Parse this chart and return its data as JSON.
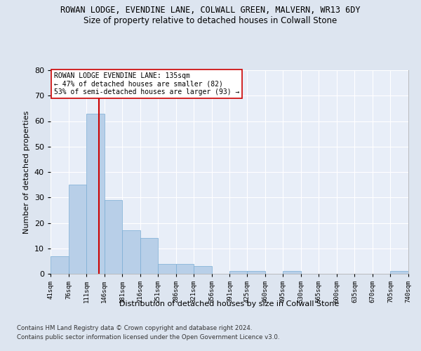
{
  "title": "ROWAN LODGE, EVENDINE LANE, COLWALL GREEN, MALVERN, WR13 6DY",
  "subtitle": "Size of property relative to detached houses in Colwall Stone",
  "xlabel": "Distribution of detached houses by size in Colwall Stone",
  "ylabel": "Number of detached properties",
  "bar_color": "#b8cfe8",
  "bar_edge_color": "#7aadd4",
  "bins": [
    41,
    76,
    111,
    146,
    181,
    216,
    251,
    286,
    321,
    356,
    391,
    425,
    460,
    495,
    530,
    565,
    600,
    635,
    670,
    705,
    740
  ],
  "counts": [
    7,
    35,
    63,
    29,
    17,
    14,
    4,
    4,
    3,
    0,
    1,
    1,
    0,
    1,
    0,
    0,
    0,
    0,
    0,
    1
  ],
  "vline_x": 135,
  "vline_color": "#cc0000",
  "ylim": [
    0,
    80
  ],
  "yticks": [
    0,
    10,
    20,
    30,
    40,
    50,
    60,
    70,
    80
  ],
  "annotation_text": "ROWAN LODGE EVENDINE LANE: 135sqm\n← 47% of detached houses are smaller (82)\n53% of semi-detached houses are larger (93) →",
  "annotation_box_color": "#ffffff",
  "annotation_box_edge": "#cc0000",
  "footnote1": "Contains HM Land Registry data © Crown copyright and database right 2024.",
  "footnote2": "Contains public sector information licensed under the Open Government Licence v3.0.",
  "background_color": "#dde5f0",
  "plot_bg_color": "#e8eef8",
  "grid_color": "#ffffff",
  "title_fontsize": 8.5,
  "subtitle_fontsize": 8.5,
  "ylabel_fontsize": 8,
  "xlabel_fontsize": 8
}
